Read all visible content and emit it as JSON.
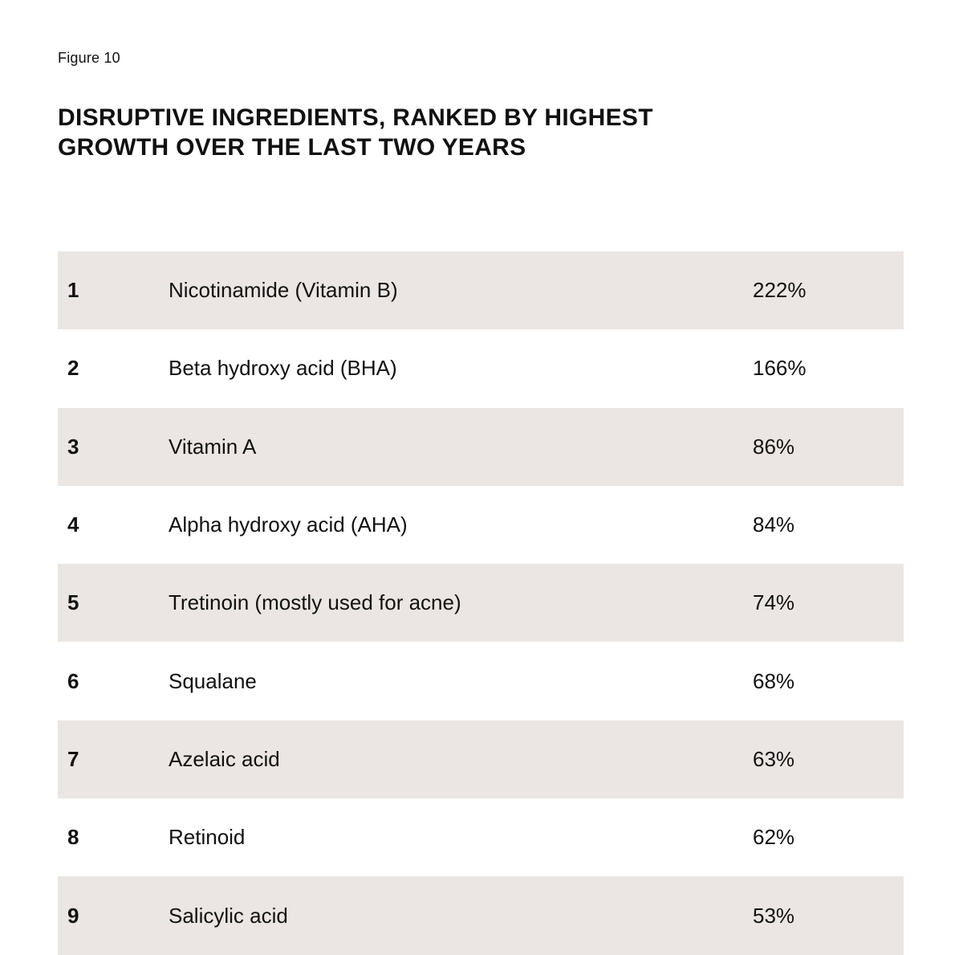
{
  "figure": {
    "label": "Figure 10",
    "title_lines": [
      "DISRUPTIVE INGREDIENTS, RANKED BY HIGHEST",
      "GROWTH OVER THE LAST TWO YEARS"
    ]
  },
  "table": {
    "rows": [
      {
        "rank": "1",
        "ingredient": "Nicotinamide (Vitamin B)",
        "growth": "222%"
      },
      {
        "rank": "2",
        "ingredient": "Beta hydroxy acid (BHA)",
        "growth": "166%"
      },
      {
        "rank": "3",
        "ingredient": "Vitamin A",
        "growth": "86%"
      },
      {
        "rank": "4",
        "ingredient": "Alpha hydroxy acid (AHA)",
        "growth": "84%"
      },
      {
        "rank": "5",
        "ingredient": "Tretinoin (mostly used for acne)",
        "growth": "74%"
      },
      {
        "rank": "6",
        "ingredient": "Squalane",
        "growth": "68%"
      },
      {
        "rank": "7",
        "ingredient": "Azelaic acid",
        "growth": "63%"
      },
      {
        "rank": "8",
        "ingredient": "Retinoid",
        "growth": "62%"
      },
      {
        "rank": "9",
        "ingredient": "Salicylic acid",
        "growth": "53%"
      }
    ],
    "shade_color": "#ebe6e3"
  }
}
